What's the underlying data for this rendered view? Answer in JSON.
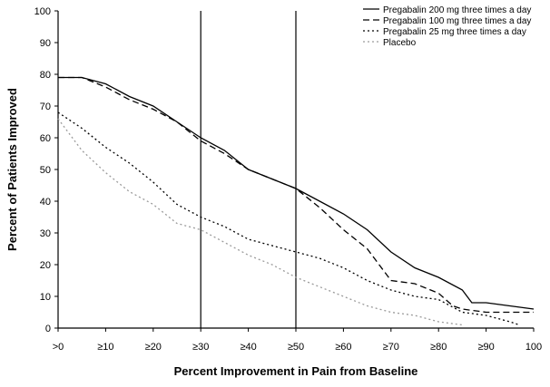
{
  "chart_data": {
    "type": "line",
    "title": "",
    "xlabel": "Percent Improvement in Pain from Baseline",
    "ylabel": "Percent of Patients Improved",
    "xlim": [
      0,
      100
    ],
    "ylim": [
      0,
      100
    ],
    "x_tick_labels": [
      ">0",
      "≥10",
      "≥20",
      "≥30",
      "≥40",
      "≥50",
      "≥60",
      "≥70",
      "≥80",
      "≥90",
      "100"
    ],
    "y_tick_labels": [
      "0",
      "10",
      "20",
      "30",
      "40",
      "50",
      "60",
      "70",
      "80",
      "90",
      "100"
    ],
    "reference_lines_x": [
      30,
      50
    ],
    "grid": false,
    "legend_position": "top-right",
    "series": [
      {
        "name": "Pregabalin 200 mg three times a day",
        "style": "solid",
        "color": "#000000",
        "x": [
          0,
          5,
          10,
          15,
          20,
          25,
          30,
          35,
          40,
          45,
          50,
          55,
          60,
          65,
          70,
          75,
          80,
          85,
          87,
          90,
          95,
          100
        ],
        "y": [
          79,
          79,
          77,
          73,
          70,
          65,
          60,
          56,
          50,
          47,
          44,
          40,
          36,
          31,
          24,
          19,
          16,
          12,
          8,
          8,
          7,
          6
        ]
      },
      {
        "name": "Pregabalin 100 mg three times a day",
        "style": "dashed",
        "color": "#000000",
        "x": [
          0,
          5,
          10,
          15,
          20,
          25,
          30,
          35,
          40,
          45,
          50,
          55,
          60,
          65,
          70,
          75,
          80,
          83,
          85,
          90,
          95,
          100
        ],
        "y": [
          79,
          79,
          76,
          72,
          69,
          65,
          59,
          55,
          50,
          47,
          44,
          38,
          31,
          25,
          15,
          14,
          11,
          7,
          6,
          5,
          5,
          5
        ]
      },
      {
        "name": "Pregabalin 25 mg three times a day",
        "style": "dotted",
        "color": "#000000",
        "x": [
          0,
          5,
          10,
          15,
          20,
          25,
          30,
          35,
          40,
          45,
          50,
          55,
          60,
          65,
          70,
          75,
          80,
          85,
          90,
          95,
          97
        ],
        "y": [
          68,
          63,
          57,
          52,
          46,
          39,
          35,
          32,
          28,
          26,
          24,
          22,
          19,
          15,
          12,
          10,
          9,
          5,
          4,
          2,
          1
        ]
      },
      {
        "name": "Placebo",
        "style": "dotted",
        "color": "#9a9a9a",
        "x": [
          0,
          5,
          10,
          15,
          20,
          25,
          30,
          35,
          40,
          45,
          50,
          55,
          60,
          65,
          70,
          75,
          80,
          85
        ],
        "y": [
          66,
          56,
          49,
          43,
          39,
          33,
          31,
          27,
          23,
          20,
          16,
          13,
          10,
          7,
          5,
          4,
          2,
          1
        ]
      }
    ]
  }
}
